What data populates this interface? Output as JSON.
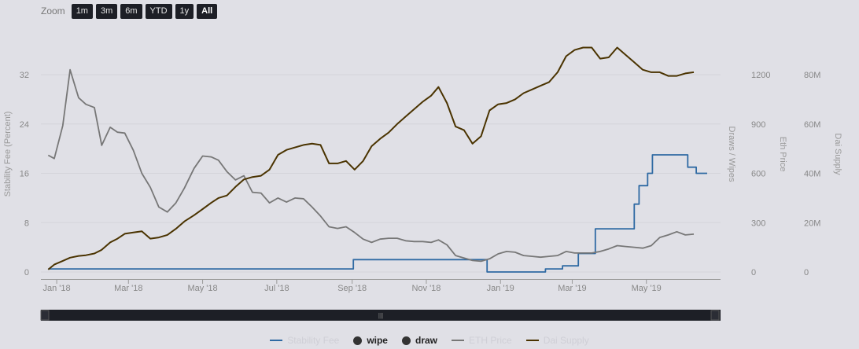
{
  "zoom": {
    "label": "Zoom",
    "buttons": [
      "1m",
      "3m",
      "6m",
      "YTD",
      "1y",
      "All"
    ],
    "active": "All"
  },
  "navigator": {
    "handle_glyph": "|||"
  },
  "chart_data": {
    "type": "line",
    "x_ticks": [
      "Jan '18",
      "Mar '18",
      "May '18",
      "Jul '18",
      "Sep '18",
      "Nov '18",
      "Jan '19",
      "Mar '19",
      "May '19"
    ],
    "axes": {
      "stability_fee": {
        "title": "Stability Fee (Percent)",
        "ticks": [
          "0",
          "8",
          "16",
          "24",
          "32"
        ],
        "range": [
          0,
          32
        ]
      },
      "draws_wipes": {
        "title": "Draws / Wipes",
        "ticks": [
          "0",
          "300",
          "600",
          "900",
          "1200"
        ],
        "range": [
          0,
          1200
        ]
      },
      "eth_price": {
        "title": "Eth Price",
        "ticks": [],
        "range": [
          0,
          1200
        ]
      },
      "dai_supply": {
        "title": "Dai Supply",
        "ticks": [
          "0",
          "20M",
          "40M",
          "60M",
          "80M"
        ],
        "range": [
          0,
          80000000
        ]
      }
    },
    "series": [
      {
        "name": "Stability Fee",
        "color": "#2f6aa3",
        "axis": "stability_fee",
        "visible": false,
        "step": true,
        "points": [
          [
            "2017-12-25",
            0.5
          ],
          [
            "2018-09-01",
            0.5
          ],
          [
            "2018-09-02",
            2.0
          ],
          [
            "2018-12-20",
            2.0
          ],
          [
            "2018-12-21",
            0.0
          ],
          [
            "2019-02-06",
            0.0
          ],
          [
            "2019-02-07",
            0.5
          ],
          [
            "2019-02-21",
            1.0
          ],
          [
            "2019-03-06",
            3.0
          ],
          [
            "2019-03-19",
            3.0
          ],
          [
            "2019-03-20",
            7.0
          ],
          [
            "2019-04-21",
            11.0
          ],
          [
            "2019-04-25",
            14.0
          ],
          [
            "2019-05-02",
            16.0
          ],
          [
            "2019-05-06",
            19.0
          ],
          [
            "2019-06-03",
            19.0
          ],
          [
            "2019-06-04",
            17.0
          ],
          [
            "2019-06-11",
            16.0
          ],
          [
            "2019-06-20",
            16.0
          ]
        ]
      },
      {
        "name": "wipe",
        "color": "#333333",
        "visible": true,
        "points": []
      },
      {
        "name": "draw",
        "color": "#333333",
        "visible": true,
        "points": []
      },
      {
        "name": "ETH Price",
        "color": "#777777",
        "axis": "eth_price",
        "visible": false,
        "points": [
          [
            "2017-12-25",
            710
          ],
          [
            "2017-12-30",
            690
          ],
          [
            "2018-01-06",
            890
          ],
          [
            "2018-01-12",
            1230
          ],
          [
            "2018-01-19",
            1060
          ],
          [
            "2018-01-25",
            1020
          ],
          [
            "2018-02-01",
            1000
          ],
          [
            "2018-02-07",
            770
          ],
          [
            "2018-02-14",
            880
          ],
          [
            "2018-02-20",
            850
          ],
          [
            "2018-02-26",
            845
          ],
          [
            "2018-03-05",
            740
          ],
          [
            "2018-03-12",
            600
          ],
          [
            "2018-03-19",
            515
          ],
          [
            "2018-03-26",
            395
          ],
          [
            "2018-04-02",
            365
          ],
          [
            "2018-04-09",
            420
          ],
          [
            "2018-04-16",
            510
          ],
          [
            "2018-04-24",
            630
          ],
          [
            "2018-05-01",
            705
          ],
          [
            "2018-05-08",
            700
          ],
          [
            "2018-05-14",
            680
          ],
          [
            "2018-05-21",
            610
          ],
          [
            "2018-05-28",
            560
          ],
          [
            "2018-06-04",
            585
          ],
          [
            "2018-06-11",
            485
          ],
          [
            "2018-06-18",
            480
          ],
          [
            "2018-06-25",
            420
          ],
          [
            "2018-07-02",
            450
          ],
          [
            "2018-07-09",
            425
          ],
          [
            "2018-07-16",
            450
          ],
          [
            "2018-07-23",
            445
          ],
          [
            "2018-07-30",
            395
          ],
          [
            "2018-08-06",
            340
          ],
          [
            "2018-08-13",
            275
          ],
          [
            "2018-08-20",
            265
          ],
          [
            "2018-08-27",
            275
          ],
          [
            "2018-09-03",
            240
          ],
          [
            "2018-09-10",
            200
          ],
          [
            "2018-09-17",
            180
          ],
          [
            "2018-09-24",
            200
          ],
          [
            "2018-10-01",
            205
          ],
          [
            "2018-10-08",
            205
          ],
          [
            "2018-10-15",
            190
          ],
          [
            "2018-10-22",
            185
          ],
          [
            "2018-10-29",
            185
          ],
          [
            "2018-11-05",
            180
          ],
          [
            "2018-11-11",
            195
          ],
          [
            "2018-11-18",
            165
          ],
          [
            "2018-11-25",
            100
          ],
          [
            "2018-12-02",
            85
          ],
          [
            "2018-12-09",
            70
          ],
          [
            "2018-12-16",
            65
          ],
          [
            "2018-12-23",
            80
          ],
          [
            "2018-12-30",
            110
          ],
          [
            "2019-01-06",
            125
          ],
          [
            "2019-01-13",
            120
          ],
          [
            "2019-01-20",
            100
          ],
          [
            "2019-01-27",
            95
          ],
          [
            "2019-02-03",
            90
          ],
          [
            "2019-02-10",
            95
          ],
          [
            "2019-02-17",
            100
          ],
          [
            "2019-02-24",
            125
          ],
          [
            "2019-03-03",
            115
          ],
          [
            "2019-03-10",
            115
          ],
          [
            "2019-03-17",
            115
          ],
          [
            "2019-03-24",
            125
          ],
          [
            "2019-03-31",
            140
          ],
          [
            "2019-04-07",
            160
          ],
          [
            "2019-04-14",
            155
          ],
          [
            "2019-04-21",
            150
          ],
          [
            "2019-04-28",
            145
          ],
          [
            "2019-05-05",
            160
          ],
          [
            "2019-05-12",
            210
          ],
          [
            "2019-05-19",
            225
          ],
          [
            "2019-05-26",
            245
          ],
          [
            "2019-06-02",
            225
          ],
          [
            "2019-06-09",
            230
          ]
        ]
      },
      {
        "name": "Dai Supply",
        "color": "#4a3300",
        "axis": "dai_supply",
        "visible": false,
        "points": [
          [
            "2017-12-25",
            1000000
          ],
          [
            "2017-12-30",
            3000000
          ],
          [
            "2018-01-06",
            4500000
          ],
          [
            "2018-01-12",
            5800000
          ],
          [
            "2018-01-19",
            6500000
          ],
          [
            "2018-01-25",
            6800000
          ],
          [
            "2018-02-01",
            7500000
          ],
          [
            "2018-02-07",
            9000000
          ],
          [
            "2018-02-14",
            12000000
          ],
          [
            "2018-02-20",
            13500000
          ],
          [
            "2018-02-26",
            15500000
          ],
          [
            "2018-03-05",
            16000000
          ],
          [
            "2018-03-12",
            16500000
          ],
          [
            "2018-03-19",
            13500000
          ],
          [
            "2018-03-26",
            14000000
          ],
          [
            "2018-04-02",
            15000000
          ],
          [
            "2018-04-09",
            17500000
          ],
          [
            "2018-04-16",
            20500000
          ],
          [
            "2018-04-24",
            23000000
          ],
          [
            "2018-05-01",
            25500000
          ],
          [
            "2018-05-08",
            28000000
          ],
          [
            "2018-05-14",
            30000000
          ],
          [
            "2018-05-21",
            31000000
          ],
          [
            "2018-05-28",
            34500000
          ],
          [
            "2018-06-04",
            37500000
          ],
          [
            "2018-06-11",
            38500000
          ],
          [
            "2018-06-18",
            39000000
          ],
          [
            "2018-06-25",
            41500000
          ],
          [
            "2018-07-02",
            47500000
          ],
          [
            "2018-07-09",
            49500000
          ],
          [
            "2018-07-16",
            50500000
          ],
          [
            "2018-07-23",
            51500000
          ],
          [
            "2018-07-30",
            52000000
          ],
          [
            "2018-08-06",
            51500000
          ],
          [
            "2018-08-13",
            44000000
          ],
          [
            "2018-08-20",
            44000000
          ],
          [
            "2018-08-27",
            45000000
          ],
          [
            "2018-09-03",
            41500000
          ],
          [
            "2018-09-10",
            45000000
          ],
          [
            "2018-09-17",
            51000000
          ],
          [
            "2018-09-24",
            54000000
          ],
          [
            "2018-10-01",
            56500000
          ],
          [
            "2018-10-08",
            60000000
          ],
          [
            "2018-10-15",
            63000000
          ],
          [
            "2018-10-22",
            66000000
          ],
          [
            "2018-10-29",
            69000000
          ],
          [
            "2018-11-05",
            71500000
          ],
          [
            "2018-11-11",
            75000000
          ],
          [
            "2018-11-18",
            68500000
          ],
          [
            "2018-11-25",
            59000000
          ],
          [
            "2018-12-02",
            57500000
          ],
          [
            "2018-12-09",
            52000000
          ],
          [
            "2018-12-16",
            55000000
          ],
          [
            "2018-12-23",
            65500000
          ],
          [
            "2018-12-30",
            68000000
          ],
          [
            "2019-01-06",
            68500000
          ],
          [
            "2019-01-13",
            70000000
          ],
          [
            "2019-01-20",
            72500000
          ],
          [
            "2019-01-27",
            74000000
          ],
          [
            "2019-02-03",
            75500000
          ],
          [
            "2019-02-10",
            77000000
          ],
          [
            "2019-02-17",
            81000000
          ],
          [
            "2019-02-24",
            87500000
          ],
          [
            "2019-03-03",
            90000000
          ],
          [
            "2019-03-10",
            91000000
          ],
          [
            "2019-03-17",
            91000000
          ],
          [
            "2019-03-24",
            86500000
          ],
          [
            "2019-03-31",
            87000000
          ],
          [
            "2019-04-07",
            91000000
          ],
          [
            "2019-04-14",
            88000000
          ],
          [
            "2019-04-21",
            85000000
          ],
          [
            "2019-04-28",
            82000000
          ],
          [
            "2019-05-05",
            81000000
          ],
          [
            "2019-05-12",
            81000000
          ],
          [
            "2019-05-19",
            79500000
          ],
          [
            "2019-05-26",
            79500000
          ],
          [
            "2019-06-02",
            80500000
          ],
          [
            "2019-06-09",
            81000000
          ]
        ]
      }
    ]
  }
}
